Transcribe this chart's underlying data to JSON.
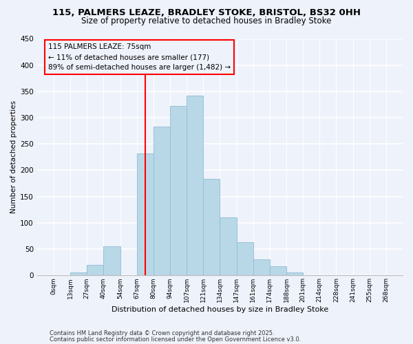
{
  "title": "115, PALMERS LEAZE, BRADLEY STOKE, BRISTOL, BS32 0HH",
  "subtitle": "Size of property relative to detached houses in Bradley Stoke",
  "xlabel": "Distribution of detached houses by size in Bradley Stoke",
  "ylabel": "Number of detached properties",
  "bin_labels": [
    "0sqm",
    "13sqm",
    "27sqm",
    "40sqm",
    "54sqm",
    "67sqm",
    "80sqm",
    "94sqm",
    "107sqm",
    "121sqm",
    "134sqm",
    "147sqm",
    "161sqm",
    "174sqm",
    "188sqm",
    "201sqm",
    "214sqm",
    "228sqm",
    "241sqm",
    "255sqm",
    "268sqm"
  ],
  "bar_values": [
    0,
    6,
    20,
    55,
    0,
    232,
    283,
    322,
    342,
    183,
    110,
    63,
    31,
    18,
    6,
    0,
    0,
    0,
    0,
    0
  ],
  "bar_color": "#b8d8e8",
  "bar_edge_color": "#90bcd0",
  "vline_x": 5.5,
  "vline_color": "red",
  "ylim": [
    0,
    450
  ],
  "yticks": [
    0,
    50,
    100,
    150,
    200,
    250,
    300,
    350,
    400,
    450
  ],
  "annotation_title": "115 PALMERS LEAZE: 75sqm",
  "annotation_line1": "← 11% of detached houses are smaller (177)",
  "annotation_line2": "89% of semi-detached houses are larger (1,482) →",
  "footer1": "Contains HM Land Registry data © Crown copyright and database right 2025.",
  "footer2": "Contains public sector information licensed under the Open Government Licence v3.0.",
  "bg_color": "#eef2fb"
}
